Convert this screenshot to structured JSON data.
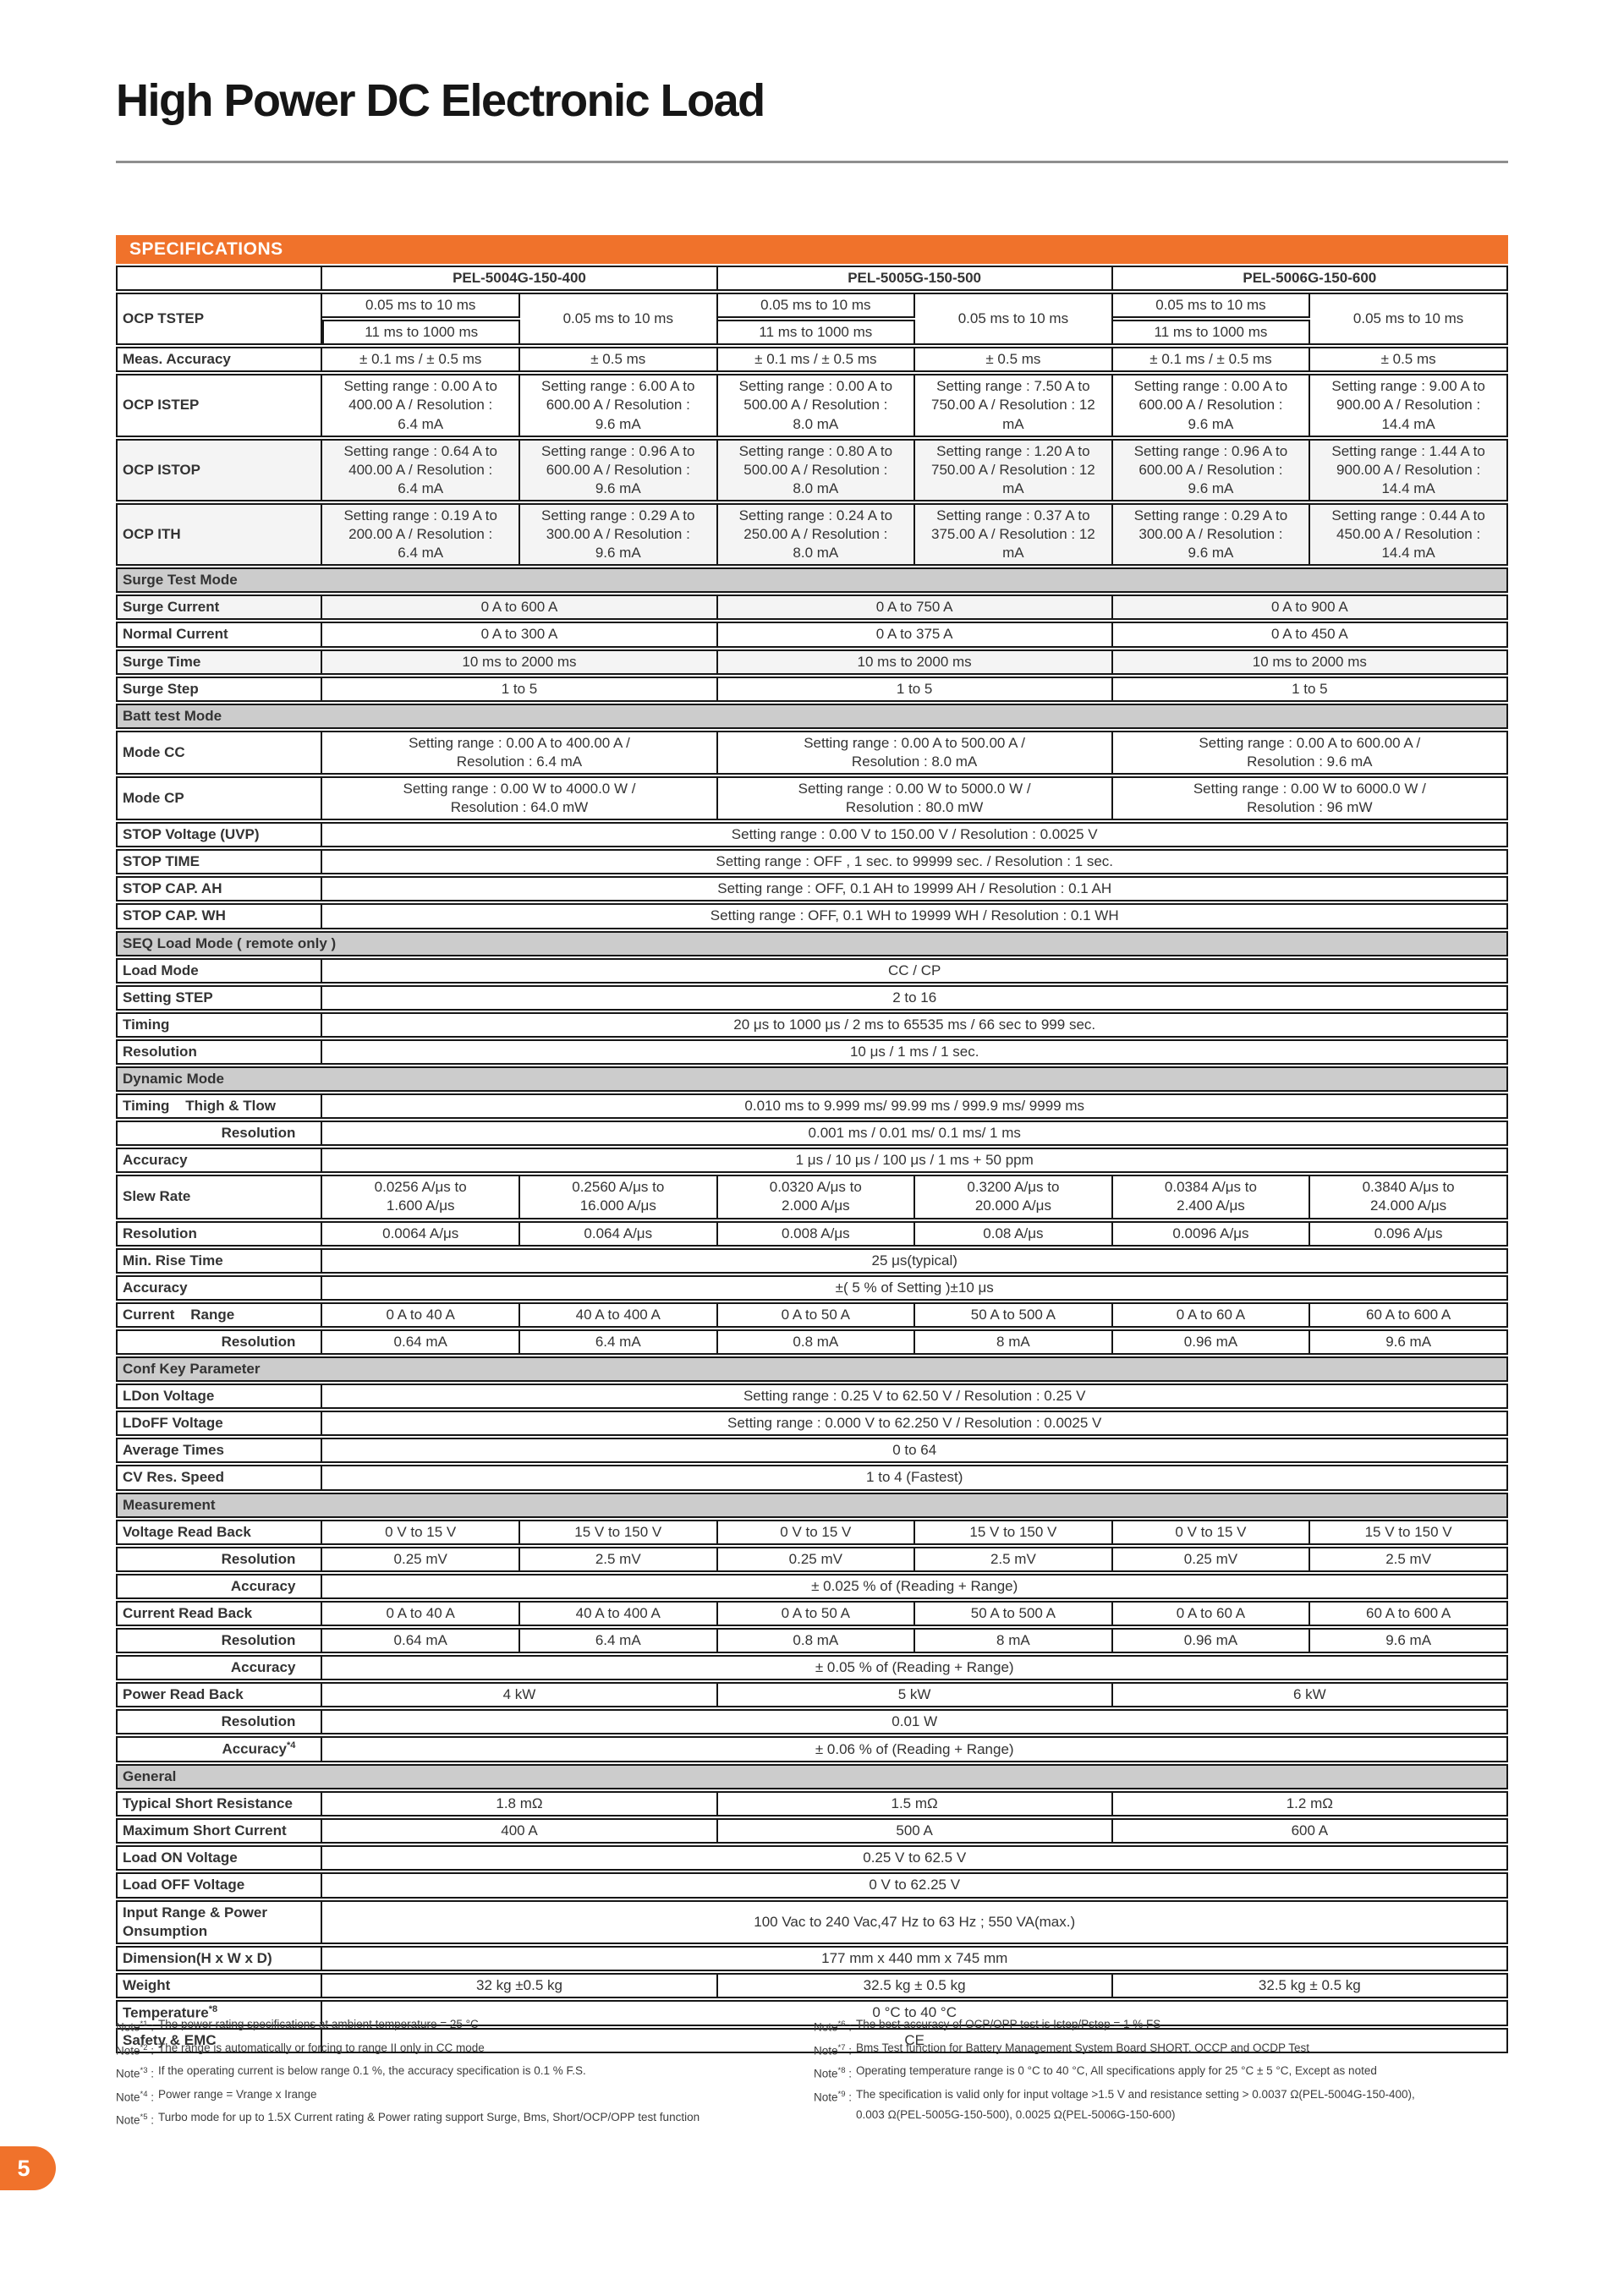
{
  "page": {
    "title": "High Power DC Electronic Load",
    "page_number": "5",
    "accent_color": "#F0722B",
    "section_bg_color": "#cccccc"
  },
  "spec_table": {
    "banner": "SPECIFICATIONS",
    "models": [
      "PEL-5004G-150-400",
      "PEL-5005G-150-500",
      "PEL-5006G-150-600"
    ],
    "rows": [
      {
        "kind": "data",
        "cls": "h30",
        "label": "OCP TSTEP",
        "labelRowspan": 2,
        "cells": [
          {
            "t": "0.05 ms to 10 ms"
          },
          {
            "t": "0.05 ms to 10 ms",
            "rs": 2
          },
          {
            "t": "0.05 ms to 10 ms"
          },
          {
            "t": "0.05 ms to 10 ms",
            "rs": 2
          },
          {
            "t": "0.05 ms to 10 ms"
          },
          {
            "t": "0.05 ms to 10 ms",
            "rs": 2
          }
        ]
      },
      {
        "kind": "data",
        "cls": "h30",
        "noLabel": true,
        "cells": [
          {
            "t": "11 ms to 1000 ms"
          },
          {
            "t": "11 ms to 1000 ms"
          },
          {
            "t": "11 ms to 1000 ms"
          }
        ]
      },
      {
        "kind": "data",
        "cls": "h26",
        "label": "Meas. Accuracy",
        "cells": [
          {
            "t": "± 0.1 ms / ± 0.5 ms"
          },
          {
            "t": "± 0.5 ms"
          },
          {
            "t": "± 0.1 ms / ± 0.5 ms"
          },
          {
            "t": "± 0.5 ms"
          },
          {
            "t": "± 0.1 ms / ± 0.5 ms"
          },
          {
            "t": "± 0.5 ms"
          }
        ]
      },
      {
        "kind": "data",
        "label": "OCP ISTEP",
        "cells": [
          {
            "t": "Setting range : 0.00 A to\n400.00 A / Resolution :\n6.4 mA"
          },
          {
            "t": "Setting range : 6.00 A to\n600.00 A / Resolution :\n9.6 mA"
          },
          {
            "t": "Setting range : 0.00 A to\n500.00 A / Resolution :\n8.0 mA"
          },
          {
            "t": "Setting range : 7.50 A to\n750.00 A / Resolution : 12\nmA"
          },
          {
            "t": "Setting range : 0.00 A to\n600.00 A / Resolution :\n9.6 mA"
          },
          {
            "t": "Setting range : 9.00 A to\n900.00 A / Resolution :\n14.4 mA"
          }
        ]
      },
      {
        "kind": "data",
        "shade": true,
        "label": "OCP ISTOP",
        "cells": [
          {
            "t": "Setting range : 0.64 A to\n400.00 A / Resolution :\n6.4 mA"
          },
          {
            "t": "Setting range : 0.96 A to\n600.00 A / Resolution :\n9.6 mA"
          },
          {
            "t": "Setting range : 0.80 A to\n500.00 A / Resolution :\n8.0 mA"
          },
          {
            "t": "Setting range : 1.20 A to\n750.00 A / Resolution : 12\nmA"
          },
          {
            "t": "Setting range : 0.96 A to\n600.00 A / Resolution :\n9.6 mA"
          },
          {
            "t": "Setting range : 1.44 A to\n900.00 A / Resolution :\n14.4 mA"
          }
        ]
      },
      {
        "kind": "data",
        "shade": true,
        "label": "OCP ITH",
        "cells": [
          {
            "t": "Setting range : 0.19 A to\n200.00 A / Resolution :\n6.4 mA"
          },
          {
            "t": "Setting range : 0.29 A to\n300.00 A / Resolution :\n9.6 mA"
          },
          {
            "t": "Setting range : 0.24 A to\n250.00 A / Resolution :\n8.0 mA"
          },
          {
            "t": "Setting range : 0.37 A to\n375.00 A / Resolution : 12\nmA"
          },
          {
            "t": "Setting range : 0.29 A to\n300.00 A / Resolution :\n9.6 mA"
          },
          {
            "t": "Setting range : 0.44 A to\n450.00 A / Resolution :\n14.4 mA"
          }
        ]
      },
      {
        "kind": "section",
        "label": "Surge Test Mode"
      },
      {
        "kind": "data",
        "shade": true,
        "label": "Surge Current",
        "cells": [
          {
            "t": "0 A to 600 A",
            "s": 2
          },
          {
            "t": "0 A to 750 A",
            "s": 2
          },
          {
            "t": "0 A to 900 A",
            "s": 2
          }
        ]
      },
      {
        "kind": "data",
        "label": "Normal Current",
        "cells": [
          {
            "t": "0 A to 300 A",
            "s": 2
          },
          {
            "t": "0 A to 375 A",
            "s": 2
          },
          {
            "t": "0 A to 450 A",
            "s": 2
          }
        ]
      },
      {
        "kind": "data",
        "shade": true,
        "label": "Surge Time",
        "cells": [
          {
            "t": "10 ms to 2000 ms",
            "s": 2
          },
          {
            "t": "10 ms to 2000 ms",
            "s": 2
          },
          {
            "t": "10 ms to 2000 ms",
            "s": 2
          }
        ]
      },
      {
        "kind": "data",
        "label": "Surge Step",
        "cells": [
          {
            "t": "1 to 5",
            "s": 2
          },
          {
            "t": "1 to 5",
            "s": 2
          },
          {
            "t": "1 to 5",
            "s": 2
          }
        ]
      },
      {
        "kind": "section",
        "label": "Batt test Mode"
      },
      {
        "kind": "data",
        "label": "Mode CC",
        "cells": [
          {
            "t": "Setting range :  0.00 A to 400.00 A /\nResolution : 6.4 mA",
            "s": 2
          },
          {
            "t": "Setting range : 0.00 A to 500.00 A /\nResolution : 8.0 mA",
            "s": 2
          },
          {
            "t": "Setting range : 0.00 A to 600.00 A /\nResolution : 9.6 mA",
            "s": 2
          }
        ]
      },
      {
        "kind": "data",
        "label": "Mode CP",
        "cells": [
          {
            "t": "Setting range : 0.00 W to 4000.0 W /\nResolution : 64.0 mW",
            "s": 2
          },
          {
            "t": "Setting range : 0.00 W to 5000.0 W /\nResolution : 80.0 mW",
            "s": 2
          },
          {
            "t": "Setting range : 0.00 W to 6000.0 W /\nResolution : 96 mW",
            "s": 2
          }
        ]
      },
      {
        "kind": "data",
        "label": "STOP Voltage (UVP)",
        "cells": [
          {
            "t": "Setting range : 0.00 V to 150.00 V / Resolution : 0.0025 V",
            "s": 6
          }
        ]
      },
      {
        "kind": "data",
        "label": "STOP TIME",
        "cells": [
          {
            "t": "Setting range : OFF , 1 sec. to  99999 sec. / Resolution : 1 sec.",
            "s": 6
          }
        ]
      },
      {
        "kind": "data",
        "label": "STOP CAP. AH",
        "cells": [
          {
            "t": "Setting range : OFF, 0.1 AH to  19999 AH / Resolution : 0.1 AH",
            "s": 6
          }
        ]
      },
      {
        "kind": "data",
        "label": "STOP CAP. WH",
        "cells": [
          {
            "t": "Setting range : OFF, 0.1 WH to 19999 WH / Resolution : 0.1 WH",
            "s": 6
          }
        ]
      },
      {
        "kind": "section",
        "label": "SEQ Load Mode ( remote only )"
      },
      {
        "kind": "data",
        "label": "Load Mode",
        "cells": [
          {
            "t": "CC / CP",
            "s": 6
          }
        ]
      },
      {
        "kind": "data",
        "label": "Setting STEP",
        "cells": [
          {
            "t": "2 to 16",
            "s": 6
          }
        ]
      },
      {
        "kind": "data",
        "label": "Timing",
        "cells": [
          {
            "t": "20 μs to 1000 μs / 2 ms to 65535 ms / 66 sec to 999 sec.",
            "s": 6
          }
        ]
      },
      {
        "kind": "data",
        "label": "Resolution",
        "cells": [
          {
            "t": "10 μs / 1 ms / 1 sec.",
            "s": 6
          }
        ]
      },
      {
        "kind": "section",
        "label": "Dynamic Mode"
      },
      {
        "kind": "data",
        "label": "Timing    Thigh & Tlow",
        "cells": [
          {
            "t": "0.010 ms to 9.999  ms/ 99.99 ms / 999.9 ms/ 9999 ms",
            "s": 6
          }
        ]
      },
      {
        "kind": "data",
        "label": "Resolution",
        "indent": true,
        "cells": [
          {
            "t": "0.001 ms / 0.01 ms/ 0.1 ms/ 1 ms",
            "s": 6
          }
        ]
      },
      {
        "kind": "data",
        "label": "Accuracy",
        "cells": [
          {
            "t": "1 μs / 10 μs / 100 μs / 1 ms + 50 ppm",
            "s": 6
          }
        ]
      },
      {
        "kind": "data",
        "label": "Slew Rate",
        "cells": [
          {
            "t": "0.0256 A/μs to\n1.600 A/μs"
          },
          {
            "t": "0.2560 A/μs to\n16.000 A/μs"
          },
          {
            "t": "0.0320 A/μs to\n2.000 A/μs"
          },
          {
            "t": "0.3200 A/μs to\n20.000 A/μs"
          },
          {
            "t": "0.0384 A/μs to\n2.400 A/μs"
          },
          {
            "t": "0.3840 A/μs to\n24.000 A/μs"
          }
        ]
      },
      {
        "kind": "data",
        "label": "Resolution",
        "cells": [
          {
            "t": "0.0064 A/μs"
          },
          {
            "t": "0.064 A/μs"
          },
          {
            "t": "0.008 A/μs"
          },
          {
            "t": "0.08 A/μs"
          },
          {
            "t": "0.0096 A/μs"
          },
          {
            "t": "0.096 A/μs"
          }
        ]
      },
      {
        "kind": "data",
        "label": "Min. Rise Time",
        "cells": [
          {
            "t": "25 μs(typical)",
            "s": 6
          }
        ]
      },
      {
        "kind": "data",
        "label": "Accuracy",
        "cells": [
          {
            "t": "±( 5 % of Setting )±10 μs",
            "s": 6
          }
        ]
      },
      {
        "kind": "data",
        "label": "Current    Range",
        "cells": [
          {
            "t": "0 A to 40 A"
          },
          {
            "t": "40 A to 400 A"
          },
          {
            "t": "0 A to 50 A"
          },
          {
            "t": "50 A to 500 A"
          },
          {
            "t": "0 A to  60 A"
          },
          {
            "t": "60 A to 600 A"
          }
        ]
      },
      {
        "kind": "data",
        "label": "Resolution",
        "indent": true,
        "cells": [
          {
            "t": "0.64 mA"
          },
          {
            "t": "6.4 mA"
          },
          {
            "t": "0.8 mA"
          },
          {
            "t": "8 mA"
          },
          {
            "t": "0.96 mA"
          },
          {
            "t": "9.6 mA"
          }
        ]
      },
      {
        "kind": "section",
        "label": "Conf Key Parameter"
      },
      {
        "kind": "data",
        "label": "LDon Voltage",
        "cells": [
          {
            "t": "Setting range : 0.25 V to  62.50 V / Resolution : 0.25 V",
            "s": 6
          }
        ]
      },
      {
        "kind": "data",
        "label": "LDoFF Voltage",
        "cells": [
          {
            "t": "Setting range : 0.000 V to  62.250 V / Resolution : 0.0025 V",
            "s": 6
          }
        ]
      },
      {
        "kind": "data",
        "label": "Average Times",
        "cells": [
          {
            "t": "0 to 64",
            "s": 6
          }
        ]
      },
      {
        "kind": "data",
        "label": "CV Res. Speed",
        "cells": [
          {
            "t": "1 to 4 (Fastest)",
            "s": 6
          }
        ]
      },
      {
        "kind": "section",
        "label": "Measurement"
      },
      {
        "kind": "data",
        "label": "Voltage Read Back",
        "cells": [
          {
            "t": "0 V to 15 V"
          },
          {
            "t": "15 V to 150 V"
          },
          {
            "t": "0 V to 15 V"
          },
          {
            "t": "15 V to 150 V"
          },
          {
            "t": "0 V to 15 V"
          },
          {
            "t": "15 V to 150 V"
          }
        ]
      },
      {
        "kind": "data",
        "label": "Resolution",
        "indent": true,
        "cells": [
          {
            "t": "0.25 mV"
          },
          {
            "t": "2.5 mV"
          },
          {
            "t": "0.25 mV"
          },
          {
            "t": "2.5 mV"
          },
          {
            "t": "0.25 mV"
          },
          {
            "t": "2.5  mV"
          }
        ]
      },
      {
        "kind": "data",
        "label": "Accuracy",
        "indent": true,
        "cells": [
          {
            "t": "± 0.025 % of (Reading + Range)",
            "s": 6
          }
        ]
      },
      {
        "kind": "data",
        "label": "Current Read Back",
        "cells": [
          {
            "t": "0 A to 40 A"
          },
          {
            "t": "40 A to 400 A"
          },
          {
            "t": "0 A to 50 A"
          },
          {
            "t": "50 A to 500 A"
          },
          {
            "t": "0 A to 60 A"
          },
          {
            "t": "60 A to 600 A"
          }
        ]
      },
      {
        "kind": "data",
        "label": "Resolution",
        "indent": true,
        "cells": [
          {
            "t": "0.64 mA"
          },
          {
            "t": "6.4 mA"
          },
          {
            "t": "0.8 mA"
          },
          {
            "t": "8 mA"
          },
          {
            "t": "0.96 mA"
          },
          {
            "t": "9.6 mA"
          }
        ]
      },
      {
        "kind": "data",
        "label": "Accuracy",
        "indent": true,
        "cells": [
          {
            "t": "± 0.05 % of (Reading + Range)",
            "s": 6
          }
        ]
      },
      {
        "kind": "data",
        "label": "Power Read Back",
        "cells": [
          {
            "t": "4 kW",
            "s": 2
          },
          {
            "t": "5 kW",
            "s": 2
          },
          {
            "t": "6 kW",
            "s": 2
          }
        ]
      },
      {
        "kind": "data",
        "label": "Resolution",
        "indent": true,
        "cells": [
          {
            "t": "0.01 W",
            "s": 6
          }
        ]
      },
      {
        "kind": "data",
        "label": "Accuracy",
        "sup": "*4",
        "indent": true,
        "cells": [
          {
            "t": "± 0.06 % of (Reading + Range)",
            "s": 6
          }
        ]
      },
      {
        "kind": "section",
        "label": "General"
      },
      {
        "kind": "data",
        "label": "Typical Short Resistance",
        "cells": [
          {
            "t": "1.8 mΩ",
            "s": 2
          },
          {
            "t": "1.5 mΩ",
            "s": 2
          },
          {
            "t": "1.2 mΩ",
            "s": 2
          }
        ]
      },
      {
        "kind": "data",
        "label": "Maximum Short Current",
        "cells": [
          {
            "t": "400 A",
            "s": 2
          },
          {
            "t": "500 A",
            "s": 2
          },
          {
            "t": "600 A",
            "s": 2
          }
        ]
      },
      {
        "kind": "data",
        "label": "Load ON Voltage",
        "cells": [
          {
            "t": "0.25 V to 62.5 V",
            "s": 6
          }
        ]
      },
      {
        "kind": "data",
        "label": "Load OFF Voltage",
        "cells": [
          {
            "t": "0 V to 62.25 V",
            "s": 6
          }
        ]
      },
      {
        "kind": "data",
        "label": "Input Range & Power\nOnsumption",
        "cells": [
          {
            "t": "100 Vac to 240 Vac,47 Hz to 63 Hz ; 550 VA(max.)",
            "s": 6
          }
        ]
      },
      {
        "kind": "data",
        "label": "Dimension(H x W x D)",
        "cells": [
          {
            "t": "177 mm x 440 mm x 745 mm",
            "s": 6
          }
        ]
      },
      {
        "kind": "data",
        "label": "Weight",
        "cells": [
          {
            "t": "32 kg ±0.5 kg",
            "s": 2
          },
          {
            "t": "32.5 kg ± 0.5 kg",
            "s": 2
          },
          {
            "t": "32.5 kg ± 0.5 kg",
            "s": 2
          }
        ]
      },
      {
        "kind": "data",
        "cls": "h26",
        "label": "Temperature",
        "sup": "*8",
        "cells": [
          {
            "t": "0 °C to 40 °C",
            "s": 6
          }
        ]
      },
      {
        "kind": "data",
        "cls": "h26",
        "label": "Safety & EMC",
        "cells": [
          {
            "t": "CE",
            "s": 6
          }
        ]
      }
    ]
  },
  "notes": {
    "left": [
      {
        "tag": "*1",
        "text": "The power rating specifications at ambient temperature = 25 °C"
      },
      {
        "tag": "*2",
        "text": "The range is automatically or forcing to range II only in CC mode"
      },
      {
        "tag": "*3",
        "text": "If the operating current is below range 0.1 %, the accuracy specification is 0.1 % F.S."
      },
      {
        "tag": "*4",
        "text": "Power range = Vrange x Irange"
      },
      {
        "tag": "*5",
        "text": "Turbo mode for up to 1.5X Current rating & Power rating support Surge, Bms, Short/OCP/OPP test function"
      }
    ],
    "right": [
      {
        "tag": "*6",
        "text": "The best accuracy of OCP/OPP test is Istep/Pstep = 1 % FS"
      },
      {
        "tag": "*7",
        "text": "Bms Test function for Battery Management System Board SHORT, OCCP and OCDP Test"
      },
      {
        "tag": "*8",
        "text": "Operating temperature range is 0 °C to 40 °C, All specifications apply for 25 °C ± 5 °C, Except as noted"
      },
      {
        "tag": "*9",
        "text": "The specification is valid only for input voltage >1.5 V and resistance setting > 0.0037 Ω(PEL-5004G-150-400),\n0.003 Ω(PEL-5005G-150-500), 0.0025 Ω(PEL-5006G-150-600)"
      }
    ]
  }
}
